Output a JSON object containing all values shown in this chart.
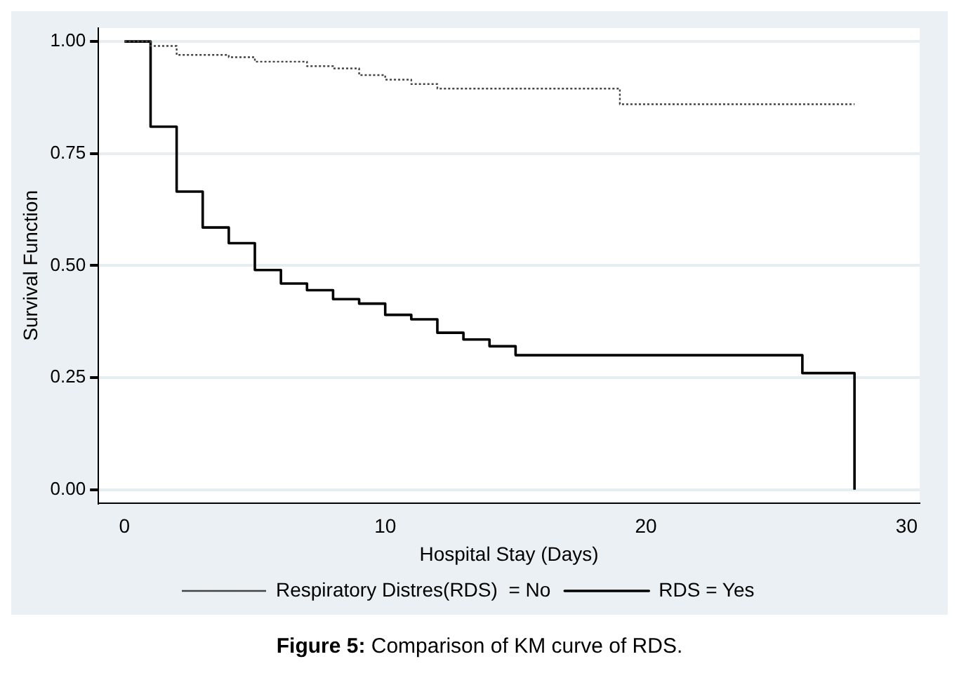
{
  "chart_data": {
    "type": "step",
    "xlabel": "Hospital Stay (Days)",
    "ylabel": "Survival Function",
    "annotations": [
      "Figure 5: Comparison of KM curve of RDS."
    ],
    "xlim": [
      -1,
      30.5
    ],
    "xticks": [
      0,
      10,
      20,
      30
    ],
    "ylim": [
      -0.03,
      1.03
    ],
    "yticks": [
      {
        "value": 0,
        "label": "0.00"
      },
      {
        "value": 0.25,
        "label": "0.25"
      },
      {
        "value": 0.5,
        "label": "0.50"
      },
      {
        "value": 0.75,
        "label": "0.75"
      },
      {
        "value": 1,
        "label": "1.00"
      }
    ],
    "grid": "y",
    "legend": "bottom",
    "marker": "none",
    "series": [
      {
        "name": "Respiratory Distres(RDS)  = No",
        "color": "#444444",
        "line_style": "dotted",
        "x": [
          0,
          1,
          2,
          4,
          5,
          7,
          8,
          9,
          10,
          11,
          12,
          19,
          28
        ],
        "values": [
          1,
          0.99,
          0.97,
          0.965,
          0.955,
          0.945,
          0.94,
          0.925,
          0.915,
          0.905,
          0.895,
          0.86,
          0.86
        ]
      },
      {
        "name": "RDS = Yes",
        "color": "#000000",
        "line_style": "solid",
        "x": [
          0,
          1,
          2,
          3,
          4,
          5,
          6,
          7,
          8,
          9,
          10,
          11,
          12,
          13,
          14,
          15,
          26,
          28
        ],
        "values": [
          1,
          0.81,
          0.665,
          0.585,
          0.55,
          0.49,
          0.46,
          0.445,
          0.425,
          0.415,
          0.39,
          0.38,
          0.35,
          0.335,
          0.32,
          0.3,
          0.26,
          0
        ]
      }
    ]
  }
}
